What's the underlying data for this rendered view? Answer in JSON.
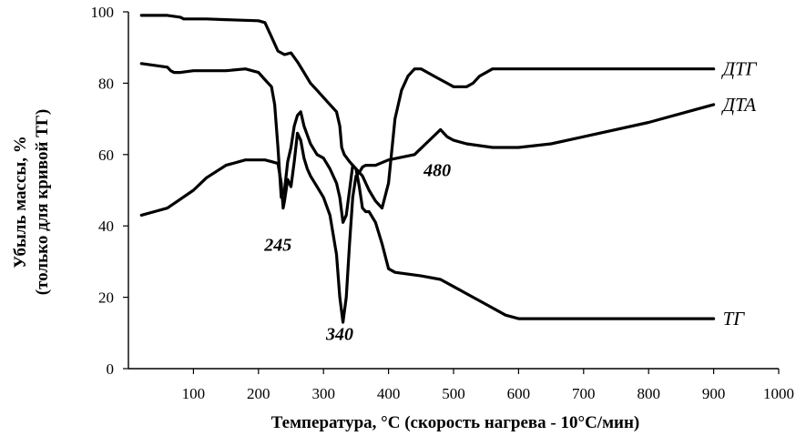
{
  "chart_data": {
    "type": "line",
    "xlabel": "Температура, °C (скорость нагрева - 10°C/мин)",
    "ylabel_line1": "Убыль массы, %",
    "ylabel_line2": "(только для кривой ТГ)",
    "xlim": [
      0,
      1000
    ],
    "ylim": [
      0,
      100
    ],
    "xticks": [
      "100",
      "200",
      "300",
      "400",
      "500",
      "600",
      "700",
      "800",
      "900",
      "1000"
    ],
    "yticks": [
      "0",
      "20",
      "40",
      "60",
      "80",
      "100"
    ],
    "grid": false,
    "series": [
      {
        "name": "ДТГ",
        "label_at": [
          900,
          84
        ],
        "x": [
          20,
          60,
          80,
          85,
          90,
          120,
          150,
          200,
          210,
          220,
          230,
          240,
          250,
          260,
          270,
          280,
          290,
          300,
          310,
          320,
          325,
          328,
          332,
          336,
          340,
          345,
          350,
          360,
          370,
          380,
          390,
          400,
          410,
          420,
          430,
          440,
          450,
          460,
          470,
          480,
          490,
          500,
          510,
          520,
          530,
          540,
          560,
          600,
          700,
          800,
          900
        ],
        "y": [
          99,
          99,
          98.5,
          98,
          98,
          98,
          97.8,
          97.5,
          97,
          93,
          89,
          88,
          88.5,
          86,
          83,
          80,
          78,
          76,
          74,
          72,
          68,
          62,
          60,
          59,
          58,
          57,
          56,
          54,
          50,
          47,
          45,
          52,
          70,
          78,
          82,
          84,
          84,
          83,
          82,
          81,
          80,
          79,
          79,
          79,
          80,
          82,
          84,
          84,
          84,
          84,
          84
        ]
      },
      {
        "name": "ДТА",
        "label_at": [
          900,
          74
        ],
        "x": [
          20,
          40,
          60,
          80,
          100,
          120,
          150,
          180,
          200,
          210,
          220,
          230,
          235,
          238,
          240,
          245,
          250,
          255,
          260,
          265,
          270,
          275,
          280,
          290,
          300,
          310,
          320,
          325,
          330,
          335,
          340,
          345,
          350,
          355,
          360,
          365,
          370,
          380,
          400,
          440,
          460,
          480,
          490,
          500,
          520,
          560,
          600,
          650,
          700,
          800,
          900
        ],
        "y": [
          43,
          44,
          45,
          47.5,
          50,
          53.5,
          57,
          58.5,
          58.5,
          58.5,
          58,
          57.5,
          52,
          45,
          47,
          53,
          51,
          58,
          66,
          64,
          59,
          56,
          54,
          51,
          48,
          43,
          32,
          20,
          13,
          20,
          35,
          48,
          54,
          55,
          56.5,
          57,
          57,
          57,
          58.5,
          60,
          63.5,
          67,
          65,
          64,
          63,
          62,
          62,
          63,
          65,
          69,
          74
        ]
      },
      {
        "name": "ТГ",
        "label_at": [
          900,
          14
        ],
        "x": [
          20,
          40,
          60,
          65,
          70,
          80,
          100,
          150,
          180,
          200,
          210,
          215,
          220,
          225,
          230,
          235,
          240,
          245,
          250,
          255,
          260,
          265,
          270,
          280,
          290,
          300,
          310,
          320,
          325,
          330,
          335,
          340,
          345,
          350,
          355,
          360,
          365,
          370,
          380,
          390,
          400,
          410,
          450,
          480,
          500,
          550,
          580,
          600,
          620,
          700,
          800,
          900
        ],
        "y": [
          85.5,
          85,
          84.5,
          83.5,
          83,
          83,
          83.5,
          83.5,
          84,
          83,
          81,
          80,
          79,
          74,
          62,
          48,
          50,
          58,
          62,
          68,
          71,
          72,
          68,
          63,
          60,
          59,
          56,
          52,
          48,
          41,
          43,
          50,
          57,
          56,
          51,
          45,
          44,
          44,
          41,
          35,
          28,
          27,
          26,
          25,
          23,
          18,
          15,
          14,
          14,
          14,
          14,
          14
        ]
      }
    ],
    "annotations": [
      {
        "text": "245",
        "x": 230,
        "y": 33
      },
      {
        "text": "340",
        "x": 325,
        "y": 8
      },
      {
        "text": "480",
        "x": 475,
        "y": 54
      }
    ]
  }
}
